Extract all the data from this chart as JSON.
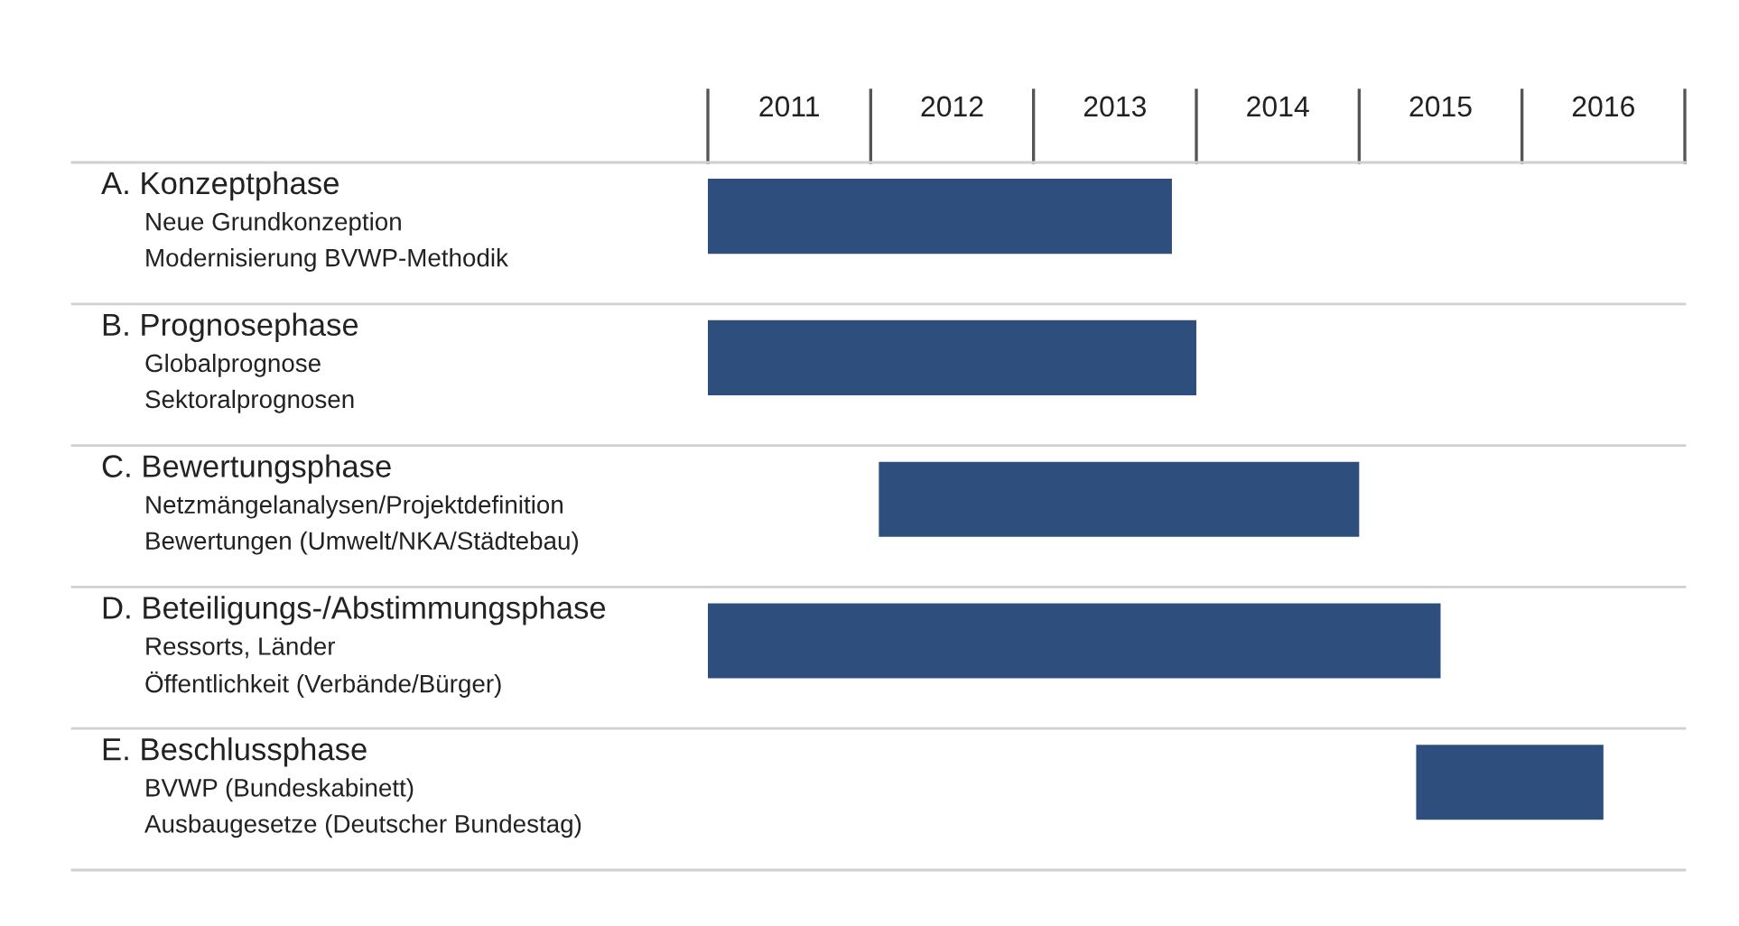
{
  "chart_data": {
    "type": "bar",
    "orientation": "horizontal",
    "categories": [
      "A. Konzeptphase\nNeue Grundkonzeption\nModernisierung BVWP-Methodik",
      "B. Prognosephase\nGlobalprognose\nSektoralprognosen",
      "C. Bewertungsphase\nNetzmängelanalysen/Projektdefinition\nBewertungen (Umwelt/NKA/Städtebau)",
      "D. Beteiligungs-/Abstimmungsphase\nRessorts, Länder\nÖffentlichkeit (Verbände/Bürger)",
      "E. Beschlussphase\nBVWP (Bundeskabinett)\nAusbaugesetze (Deutscher Bundestag)"
    ],
    "base": [
      2011.0,
      2011.0,
      2012.05,
      2011.0,
      2015.35
    ],
    "values": [
      2.85,
      3.0,
      2.95,
      4.5,
      1.15
    ],
    "color": "#2e4e7e",
    "xlim": [
      2011,
      2017
    ],
    "xticks": [
      {
        "value": 2011.5,
        "label": "2011"
      },
      {
        "value": 2012.5,
        "label": "2012"
      },
      {
        "value": 2013.5,
        "label": "2013"
      },
      {
        "value": 2014.5,
        "label": "2014"
      },
      {
        "value": 2015.5,
        "label": "2015"
      },
      {
        "value": 2016.5,
        "label": "2016"
      }
    ],
    "grid": false,
    "legend": false
  }
}
